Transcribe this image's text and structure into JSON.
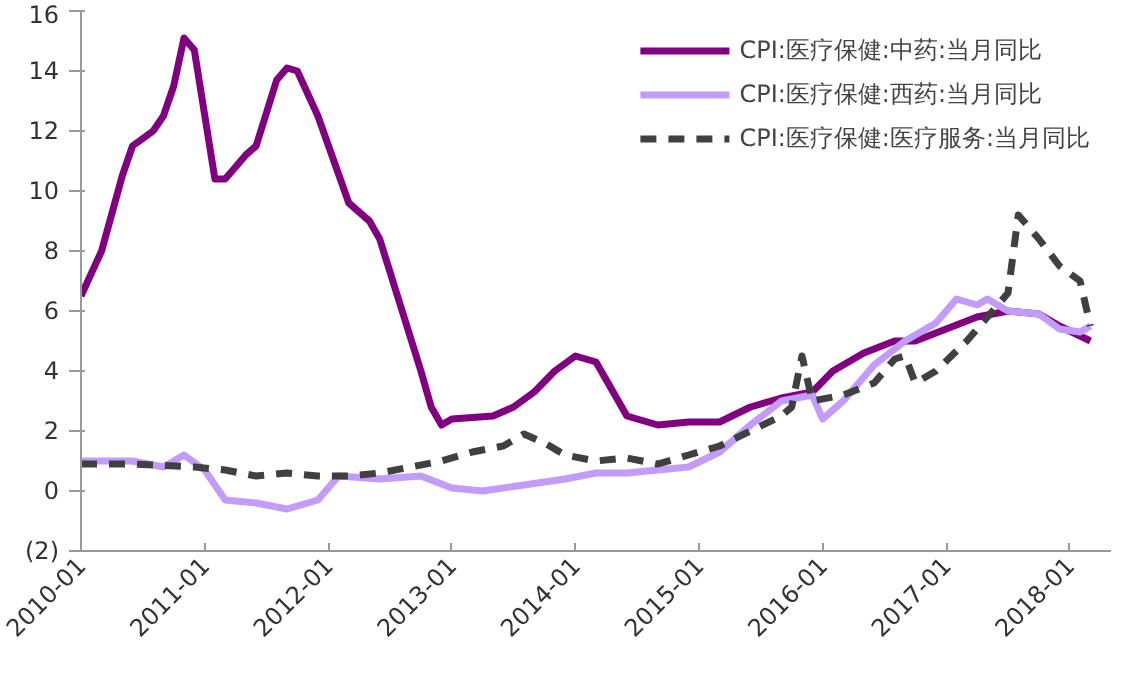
{
  "chart_data": {
    "type": "line",
    "legend": "top right",
    "grid": false,
    "line_style": "solid",
    "ylim": [
      -2,
      16
    ],
    "yticks": [
      {
        "value": -2,
        "label": "(2)"
      },
      0,
      2,
      4,
      6,
      8,
      10,
      12,
      14,
      16
    ],
    "xlim": [
      "2010-01",
      "2018-05"
    ],
    "xticks": [
      "2010-01",
      "2011-01",
      "2012-01",
      "2013-01",
      "2014-01",
      "2015-01",
      "2016-01",
      "2017-01",
      "2018-01"
    ],
    "series": [
      {
        "name": "CPI:医疗保健:中药:当月同比",
        "color": "#800080",
        "x": [
          "2010-01",
          "2010-03",
          "2010-05",
          "2010-06",
          "2010-08",
          "2010-09",
          "2010-10",
          "2010-11",
          "2010-12",
          "2011-02",
          "2011-03",
          "2011-05",
          "2011-06",
          "2011-08",
          "2011-09",
          "2011-10",
          "2011-12",
          "2012-03",
          "2012-05",
          "2012-06",
          "2012-08",
          "2012-10",
          "2012-11",
          "2012-12",
          "2013-01",
          "2013-05",
          "2013-07",
          "2013-09",
          "2013-11",
          "2014-01",
          "2014-03",
          "2014-06",
          "2014-09",
          "2014-12",
          "2015-03",
          "2015-06",
          "2015-09",
          "2015-12",
          "2016-02",
          "2016-05",
          "2016-08",
          "2016-10",
          "2017-01",
          "2017-04",
          "2017-07",
          "2017-10",
          "2017-12",
          "2018-03"
        ],
        "values": [
          6.5,
          8.0,
          10.5,
          11.5,
          12.0,
          12.5,
          13.5,
          15.1,
          14.7,
          10.4,
          10.4,
          11.2,
          11.5,
          13.7,
          14.1,
          14.0,
          12.5,
          9.6,
          9.0,
          8.4,
          6.2,
          4.0,
          2.8,
          2.2,
          2.4,
          2.5,
          2.8,
          3.3,
          4.0,
          4.5,
          4.3,
          2.5,
          2.2,
          2.3,
          2.3,
          2.8,
          3.1,
          3.3,
          4.0,
          4.6,
          5.0,
          5.0,
          5.4,
          5.8,
          6.0,
          5.9,
          5.5,
          5.0
        ]
      },
      {
        "name": "CPI:医疗保健:西药:当月同比",
        "color": "#c39bfa",
        "x": [
          "2010-01",
          "2010-06",
          "2010-09",
          "2010-11",
          "2011-01",
          "2011-03",
          "2011-06",
          "2011-09",
          "2011-12",
          "2012-02",
          "2012-06",
          "2012-10",
          "2013-01",
          "2013-04",
          "2013-08",
          "2013-12",
          "2014-03",
          "2014-06",
          "2014-12",
          "2015-03",
          "2015-06",
          "2015-09",
          "2015-12",
          "2016-01",
          "2016-03",
          "2016-06",
          "2016-09",
          "2016-12",
          "2017-02",
          "2017-04",
          "2017-05",
          "2017-07",
          "2017-10",
          "2017-12",
          "2018-02",
          "2018-03"
        ],
        "values": [
          1.0,
          1.0,
          0.8,
          1.2,
          0.7,
          -0.3,
          -0.4,
          -0.6,
          -0.3,
          0.5,
          0.4,
          0.5,
          0.1,
          0.0,
          0.2,
          0.4,
          0.6,
          0.6,
          0.8,
          1.3,
          2.2,
          3.0,
          3.2,
          2.4,
          3.0,
          4.2,
          5.0,
          5.6,
          6.4,
          6.2,
          6.4,
          6.0,
          5.9,
          5.4,
          5.3,
          5.5
        ]
      },
      {
        "name": "CPI:医疗保健:医疗服务:当月同比",
        "color": "#404040",
        "line_style": "dashed",
        "x": [
          "2010-01",
          "2010-06",
          "2010-12",
          "2011-03",
          "2011-06",
          "2011-09",
          "2011-12",
          "2012-03",
          "2012-06",
          "2012-09",
          "2012-12",
          "2013-03",
          "2013-06",
          "2013-08",
          "2013-10",
          "2013-12",
          "2014-03",
          "2014-06",
          "2014-09",
          "2014-12",
          "2015-03",
          "2015-06",
          "2015-09",
          "2015-10",
          "2015-11",
          "2015-12",
          "2016-03",
          "2016-06",
          "2016-08",
          "2016-09",
          "2016-10",
          "2016-12",
          "2017-03",
          "2017-05",
          "2017-07",
          "2017-08",
          "2017-10",
          "2017-12",
          "2018-02",
          "2018-03"
        ],
        "values": [
          0.9,
          0.9,
          0.8,
          0.7,
          0.5,
          0.6,
          0.5,
          0.5,
          0.6,
          0.8,
          1.0,
          1.3,
          1.5,
          1.9,
          1.6,
          1.2,
          1.0,
          1.1,
          0.9,
          1.2,
          1.5,
          2.0,
          2.5,
          2.8,
          4.5,
          3.0,
          3.2,
          3.6,
          4.4,
          4.5,
          3.6,
          4.0,
          5.0,
          5.8,
          6.6,
          9.2,
          8.4,
          7.5,
          7.0,
          5.5
        ]
      }
    ]
  }
}
